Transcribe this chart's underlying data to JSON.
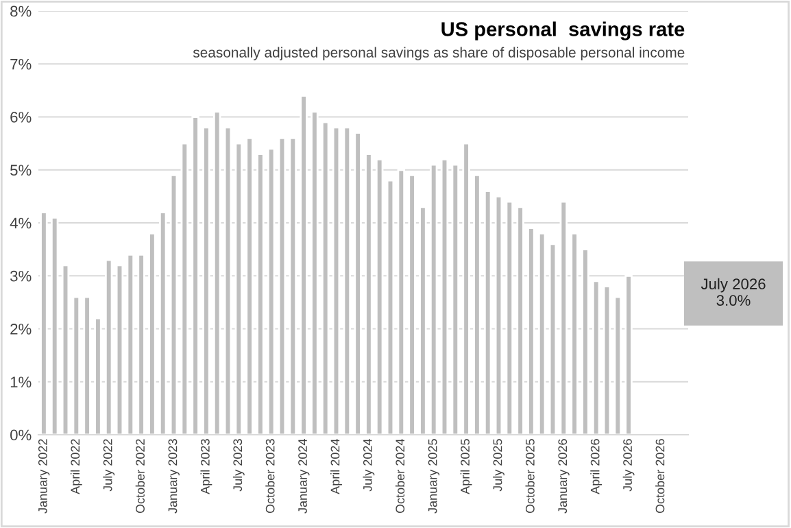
{
  "chart_data": {
    "type": "bar",
    "title": "US personal  savings rate",
    "subtitle": "seasonally adjusted personal savings as share of disposable personal income",
    "categories": [
      "January 2022",
      null,
      null,
      "April 2022",
      null,
      null,
      "July 2022",
      null,
      null,
      "October 2022",
      null,
      null,
      "January 2023",
      null,
      null,
      "April 2023",
      null,
      null,
      "July 2023",
      null,
      null,
      "October 2023",
      null,
      null,
      "January 2024",
      null,
      null,
      "April 2024",
      null,
      null,
      "July 2024",
      null,
      null,
      "October 2024",
      null,
      null,
      "January 2025",
      null,
      null,
      "April 2025",
      null,
      null,
      "July 2025",
      null,
      null,
      "October 2025",
      null,
      null,
      "January 2026",
      null,
      null,
      "April 2026",
      null,
      null,
      "July 2026",
      null,
      null,
      "October 2026",
      null,
      null
    ],
    "series": [
      {
        "color": "#bfbfbf",
        "values": [
          4.2,
          4.1,
          3.2,
          2.6,
          2.6,
          2.2,
          3.3,
          3.2,
          3.4,
          3.4,
          3.8,
          4.2,
          4.9,
          5.5,
          6.0,
          5.8,
          6.1,
          5.8,
          5.5,
          5.6,
          5.3,
          5.4,
          5.6,
          5.6,
          6.4,
          6.1,
          5.9,
          5.8,
          5.8,
          5.7,
          5.3,
          5.2,
          4.8,
          5.0,
          4.9,
          4.3,
          5.1,
          5.2,
          5.1,
          5.5,
          4.9,
          4.6,
          4.5,
          4.4,
          4.3,
          3.9,
          3.8,
          3.6,
          4.4,
          3.8,
          3.5,
          2.9,
          2.8,
          2.6,
          3.0,
          null,
          null,
          null,
          null,
          null
        ]
      }
    ],
    "ylim": [
      0,
      8
    ],
    "yticks": [
      {
        "value": 0,
        "label": "0%"
      },
      {
        "value": 1,
        "label": "1%"
      },
      {
        "value": 2,
        "label": "2%"
      },
      {
        "value": 3,
        "label": "3%"
      },
      {
        "value": 4,
        "label": "4%"
      },
      {
        "value": 5,
        "label": "5%"
      },
      {
        "value": 6,
        "label": "6%"
      },
      {
        "value": 7,
        "label": "7%"
      },
      {
        "value": 8,
        "label": "8%"
      }
    ],
    "grid": "y",
    "annotations": [
      "July 2026\n3.0%"
    ]
  }
}
